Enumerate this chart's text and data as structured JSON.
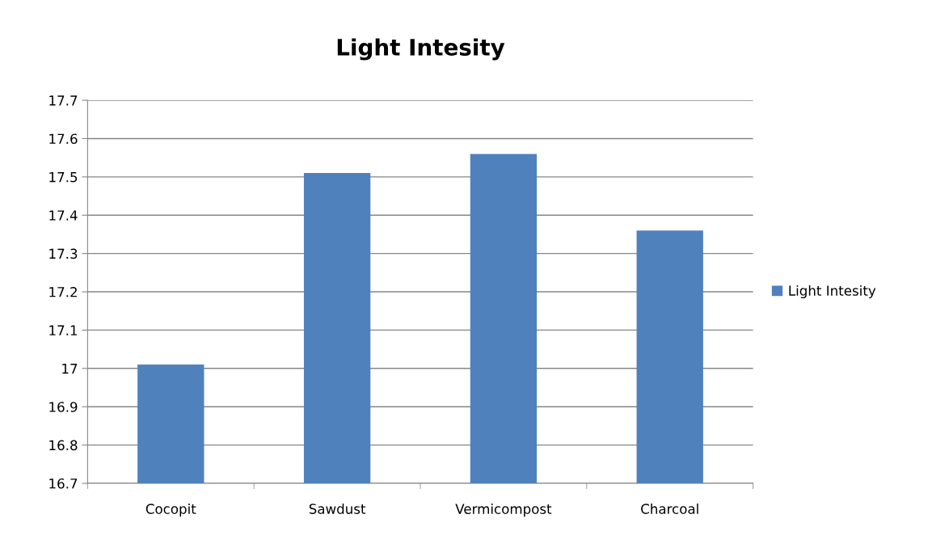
{
  "chart_data": {
    "type": "bar",
    "title": "Light Intesity",
    "categories": [
      "Cocopit",
      "Sawdust",
      "Vermicompost",
      "Charcoal"
    ],
    "series": [
      {
        "name": "Light Intesity",
        "color": "#4f81bd",
        "values": [
          17.01,
          17.51,
          17.56,
          17.36
        ]
      }
    ],
    "ylim": [
      16.7,
      17.7
    ],
    "yticks": [
      16.7,
      16.8,
      16.9,
      17,
      17.1,
      17.2,
      17.3,
      17.4,
      17.5,
      17.6,
      17.7
    ],
    "grid": "y",
    "legend": "right"
  }
}
